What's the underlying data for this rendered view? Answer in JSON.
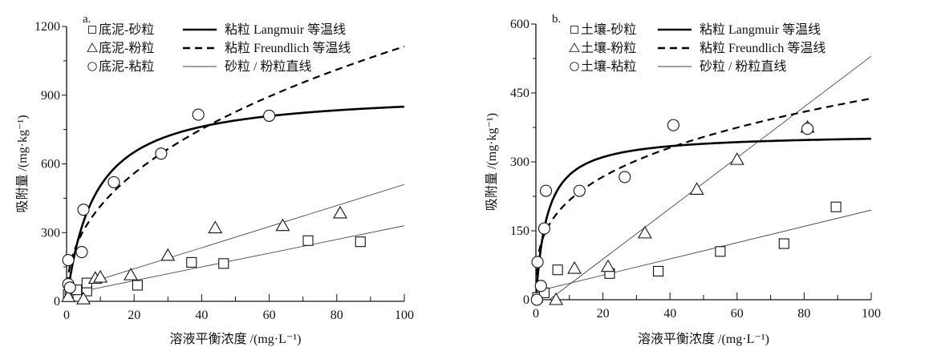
{
  "chart_data": [
    {
      "type": "scatter",
      "panel_label": "a.",
      "xlabel": "溶液平衡浓度 /(mg·L⁻¹)",
      "ylabel": "吸附量 /(mg·kg⁻¹)",
      "xlim": [
        0,
        100
      ],
      "ylim": [
        0,
        1200
      ],
      "xticks": [
        0,
        20,
        40,
        60,
        80,
        100
      ],
      "yticks": [
        0,
        300,
        600,
        900,
        1200
      ],
      "grid": false,
      "legend_placement": "top-left",
      "series": [
        {
          "name": "底泥-砂粒",
          "marker": "square",
          "points": [
            [
              0.5,
              30
            ],
            [
              1,
              50
            ],
            [
              3,
              50
            ],
            [
              6,
              45
            ],
            [
              6,
              80
            ],
            [
              21,
              70
            ],
            [
              37,
              170
            ],
            [
              46.5,
              165
            ],
            [
              71.5,
              265
            ],
            [
              87,
              260
            ]
          ]
        },
        {
          "name": "底泥-粉粒",
          "marker": "triangle",
          "points": [
            [
              0.5,
              20
            ],
            [
              5,
              10
            ],
            [
              8.5,
              100
            ],
            [
              10,
              105
            ],
            [
              19,
              115
            ],
            [
              30,
              200
            ],
            [
              44,
              320
            ],
            [
              64,
              330
            ],
            [
              81,
              385
            ]
          ]
        },
        {
          "name": "底泥-粘粒",
          "marker": "circle",
          "points": [
            [
              0.5,
              180
            ],
            [
              0.5,
              75
            ],
            [
              1,
              60
            ],
            [
              4.5,
              215
            ],
            [
              5,
              400
            ],
            [
              14,
              520
            ],
            [
              28,
              645
            ],
            [
              39,
              815
            ],
            [
              60,
              810
            ]
          ]
        }
      ],
      "fits": [
        {
          "name": "粘粒 Langmuir 等温线",
          "model": "langmuir",
          "Qm": 920,
          "K": 0.121,
          "style": "thick-solid"
        },
        {
          "name": "粘粒 Freundlich 等温线",
          "model": "freundlich",
          "Kf": 155,
          "n_inv": 0.428,
          "style": "dashed"
        },
        {
          "name": "砂粒 / 粉粒直线",
          "model": "linear",
          "lines": [
            {
              "slope": 3.0,
              "intercept": 30
            },
            {
              "slope": 4.6,
              "intercept": 50
            }
          ],
          "style": "thin-solid"
        }
      ]
    },
    {
      "type": "scatter",
      "panel_label": "b.",
      "xlabel": "溶液平衡浓度 /(mg·L⁻¹)",
      "ylabel": "吸附量 /(mg·kg⁻¹)",
      "xlim": [
        0,
        100
      ],
      "ylim": [
        0,
        600
      ],
      "xticks": [
        0,
        20,
        40,
        60,
        80,
        100
      ],
      "yticks": [
        0,
        150,
        300,
        450,
        600
      ],
      "grid": false,
      "legend_placement": "top-left",
      "series": [
        {
          "name": "土壤-砂粒",
          "marker": "square",
          "points": [
            [
              0.5,
              5
            ],
            [
              2.5,
              15
            ],
            [
              6.5,
              65
            ],
            [
              22,
              57
            ],
            [
              36.5,
              62
            ],
            [
              55,
              105
            ],
            [
              74,
              122
            ],
            [
              89.5,
              202
            ]
          ]
        },
        {
          "name": "土壤-粉粒",
          "marker": "triangle",
          "points": [
            [
              6,
              0
            ],
            [
              11.5,
              68
            ],
            [
              21.5,
              72
            ],
            [
              32.5,
              145
            ],
            [
              48,
              240
            ],
            [
              60,
              305
            ],
            [
              81,
              375
            ]
          ]
        },
        {
          "name": "土壤-粘粒",
          "marker": "circle",
          "points": [
            [
              0.3,
              0
            ],
            [
              0.5,
              82
            ],
            [
              1.5,
              30
            ],
            [
              2.5,
              155
            ],
            [
              3,
              237
            ],
            [
              13,
              237
            ],
            [
              26.5,
              267
            ],
            [
              41,
              380
            ],
            [
              81,
              372
            ]
          ]
        }
      ],
      "fits": [
        {
          "name": "粘粒 Langmuir 等温线",
          "model": "langmuir",
          "Qm": 362,
          "K": 0.3,
          "style": "thick-solid"
        },
        {
          "name": "粘粒 Freundlich 等温线",
          "model": "freundlich",
          "Kf": 107,
          "n_inv": 0.306,
          "style": "dashed"
        },
        {
          "name": "砂粒 / 粉粒直线",
          "model": "linear",
          "lines": [
            {
              "slope": 1.77,
              "intercept": 18
            },
            {
              "slope": 5.52,
              "intercept": -22
            }
          ],
          "style": "thin-solid"
        }
      ]
    }
  ]
}
